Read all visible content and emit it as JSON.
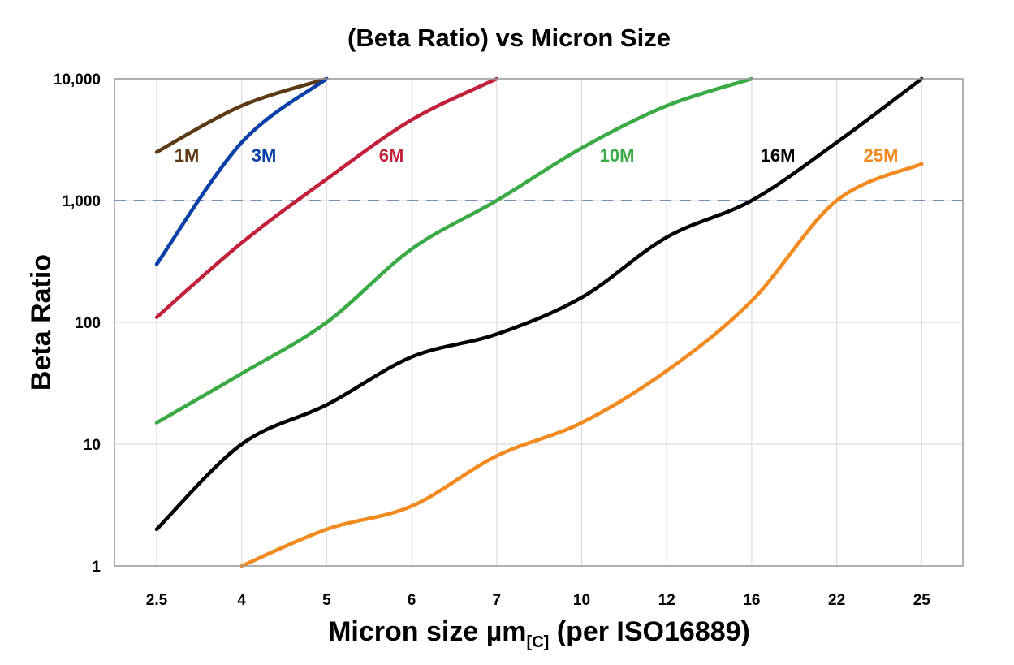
{
  "chart_data": {
    "type": "line",
    "title": "(Beta Ratio) vs Micron Size",
    "xlabel": "Micron size µm",
    "xlabel_subscript": "[C]",
    "xlabel_suffix": " (per ISO16889)",
    "ylabel": "Beta Ratio",
    "y_scale": "log",
    "ylim": [
      1,
      10000
    ],
    "grid": true,
    "categories": [
      "2.5",
      "4",
      "5",
      "6",
      "7",
      "10",
      "12",
      "16",
      "22",
      "25"
    ],
    "y_ticks": [
      1,
      10,
      100,
      1000,
      10000
    ],
    "y_tick_labels": [
      "1",
      "10",
      "100",
      "1,000",
      "10,000"
    ],
    "reference_line": {
      "y": 1000,
      "style": "dashed",
      "color": "#4a6fa5"
    },
    "series": [
      {
        "name": "1M",
        "color": "#5c3a14",
        "values": [
          2500,
          6000,
          10000,
          null,
          null,
          null,
          null,
          null,
          null,
          null
        ]
      },
      {
        "name": "3M",
        "color": "#0a3fa8",
        "values": [
          300,
          3000,
          10000,
          null,
          null,
          null,
          null,
          null,
          null,
          null
        ]
      },
      {
        "name": "6M",
        "color": "#c21f3a",
        "values": [
          110,
          450,
          1500,
          4600,
          10000,
          null,
          null,
          null,
          null,
          null
        ]
      },
      {
        "name": "10M",
        "color": "#3aaa45",
        "values": [
          15,
          38,
          100,
          400,
          1000,
          2700,
          6000,
          10000,
          null,
          null
        ]
      },
      {
        "name": "16M",
        "color": "#000000",
        "values": [
          2,
          10,
          21,
          52,
          80,
          160,
          500,
          1000,
          3000,
          10000
        ]
      },
      {
        "name": "25M",
        "color": "#f28a20",
        "values": [
          null,
          1,
          2,
          3.1,
          8,
          15,
          40,
          150,
          1000,
          2000
        ]
      }
    ]
  }
}
